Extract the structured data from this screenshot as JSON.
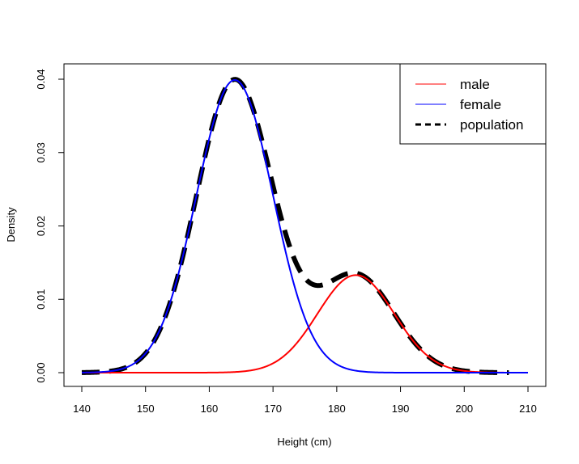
{
  "chart_data": {
    "type": "line",
    "title": "",
    "xlabel": "Height (cm)",
    "ylabel": "Density",
    "xlim": [
      140,
      210
    ],
    "ylim": [
      0,
      0.04
    ],
    "x_ticks": [
      "140",
      "150",
      "160",
      "170",
      "180",
      "190",
      "200",
      "210"
    ],
    "y_ticks": [
      "0.00",
      "0.01",
      "0.02",
      "0.03",
      "0.04"
    ],
    "grid": false,
    "legend_position": "top-right",
    "series": [
      {
        "name": "male",
        "color": "#ff0000",
        "line_style": "solid",
        "x_range": [
          140,
          210
        ],
        "distribution": {
          "kind": "normal",
          "mean": 183,
          "sd": 6,
          "weight": 0.2
        }
      },
      {
        "name": "female",
        "color": "#0000ff",
        "line_style": "solid",
        "x_range": [
          140,
          210
        ],
        "distribution": {
          "kind": "normal",
          "mean": 164,
          "sd": 6,
          "weight": 0.6
        }
      },
      {
        "name": "population",
        "color": "#000000",
        "line_style": "dashed",
        "x_range": [
          140,
          207
        ],
        "distribution": {
          "kind": "sum",
          "of": [
            "male",
            "female"
          ]
        }
      }
    ]
  }
}
